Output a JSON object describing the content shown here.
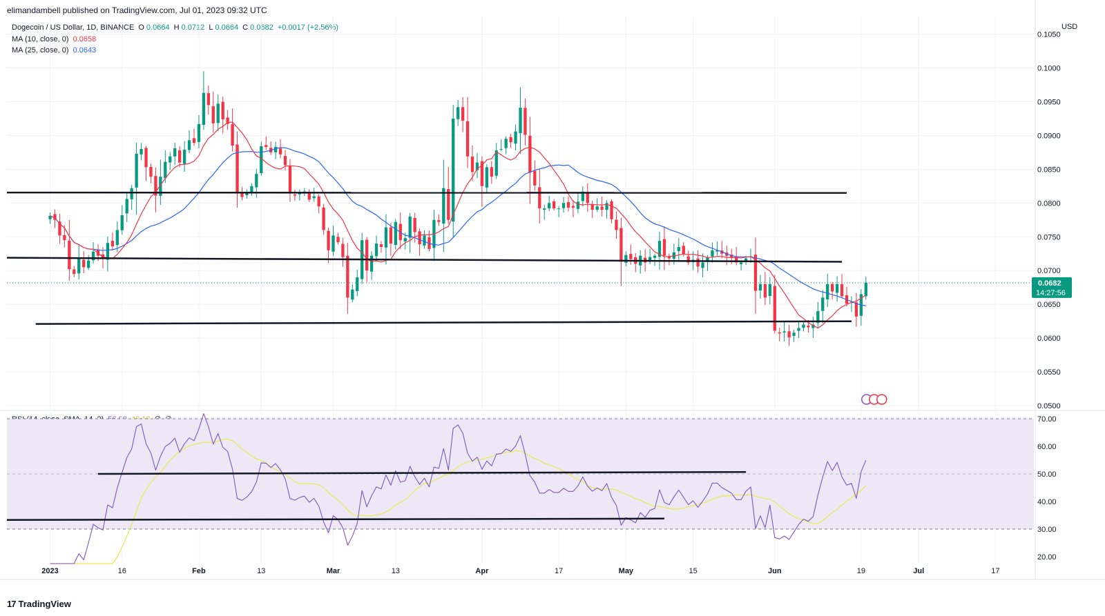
{
  "header": {
    "published": "elimandambell published on TradingView.com, Jul 01, 2023 09:32 UTC"
  },
  "legend": {
    "symbol": "Dogecoin / US Dollar, 1D, BINANCE",
    "open_label": "O",
    "open": "0.0664",
    "high_label": "H",
    "high": "0.0712",
    "low_label": "L",
    "low": "0.0664",
    "close_label": "C",
    "close": "0.0682",
    "change": "+0.0017 (+2.56%)",
    "ma10_label": "MA (10, close, 0)",
    "ma10_value": "0.0658",
    "ma25_label": "MA (25, close, 0)",
    "ma25_value": "0.0643",
    "rsi_label": "RSI (14, close, SMA, 14, 2)",
    "rsi_value": "56.00",
    "rsi_ma_value": "46.18",
    "rsi_extra1": "∅",
    "rsi_extra2": "∅"
  },
  "price_axis": {
    "currency": "USD",
    "current_price": "0.0682",
    "countdown": "14:27:56"
  },
  "footer": {
    "brand": "TradingView",
    "logo": "17"
  },
  "colors": {
    "up": "#089981",
    "down": "#f23645",
    "ma10": "#f23645",
    "ma25": "#2962ff",
    "rsi": "#7e57c2",
    "rsi_ma": "#e8ea55",
    "band": "#ede7f6",
    "line": "#131722"
  },
  "chart_data": [
    {
      "type": "candlestick",
      "title": "Dogecoin / US Dollar, 1D, BINANCE",
      "ylabel": "USD",
      "ylim": [
        0.0495,
        0.1075
      ],
      "y_ticks": [
        "0.1050",
        "0.1000",
        "0.0950",
        "0.0900",
        "0.0850",
        "0.0800",
        "0.0750",
        "0.0700",
        "0.0650",
        "0.0600",
        "0.0550",
        "0.0500"
      ],
      "x_ticks": [
        "2023",
        "16",
        "Feb",
        "13",
        "Mar",
        "13",
        "Apr",
        "17",
        "May",
        "15",
        "Jun",
        "19",
        "Jul",
        "17"
      ],
      "x_tick_days": [
        0,
        15,
        31,
        44,
        59,
        72,
        90,
        106,
        120,
        134,
        151,
        169,
        181,
        197
      ],
      "x_range_days": [
        -9,
        205
      ],
      "closes": [
        0.0781,
        0.0775,
        0.0752,
        0.0745,
        0.0702,
        0.0695,
        0.0718,
        0.0705,
        0.0715,
        0.0728,
        0.0722,
        0.0718,
        0.0741,
        0.0736,
        0.076,
        0.0782,
        0.0806,
        0.0822,
        0.0873,
        0.088,
        0.0853,
        0.0839,
        0.0811,
        0.0839,
        0.0861,
        0.0869,
        0.0881,
        0.086,
        0.0879,
        0.0893,
        0.0889,
        0.0917,
        0.0963,
        0.0945,
        0.0918,
        0.0947,
        0.0924,
        0.0917,
        0.0885,
        0.0814,
        0.0809,
        0.0815,
        0.0825,
        0.0843,
        0.0884,
        0.0883,
        0.0875,
        0.0883,
        0.0872,
        0.0856,
        0.0815,
        0.0811,
        0.0815,
        0.0817,
        0.0805,
        0.081,
        0.0795,
        0.076,
        0.073,
        0.0752,
        0.0742,
        0.072,
        0.066,
        0.0672,
        0.069,
        0.0745,
        0.07,
        0.0722,
        0.074,
        0.0735,
        0.0764,
        0.074,
        0.0772,
        0.0745,
        0.0748,
        0.078,
        0.0757,
        0.0739,
        0.0752,
        0.0732,
        0.0775,
        0.0772,
        0.0822,
        0.0775,
        0.0925,
        0.0942,
        0.0922,
        0.0869,
        0.0846,
        0.086,
        0.0825,
        0.0853,
        0.0839,
        0.0878,
        0.088,
        0.0895,
        0.089,
        0.0906,
        0.0941,
        0.0901,
        0.0845,
        0.0826,
        0.0792,
        0.0792,
        0.08,
        0.0792,
        0.0792,
        0.08,
        0.0793,
        0.0793,
        0.0802,
        0.0817,
        0.08,
        0.079,
        0.0795,
        0.079,
        0.08,
        0.0776,
        0.076,
        0.0713,
        0.0723,
        0.0717,
        0.071,
        0.0722,
        0.0712,
        0.072,
        0.0722,
        0.0744,
        0.0722,
        0.0718,
        0.0727,
        0.0735,
        0.0724,
        0.0712,
        0.0716,
        0.0706,
        0.0712,
        0.0719,
        0.073,
        0.073,
        0.0725,
        0.0722,
        0.0719,
        0.0712,
        0.0712,
        0.0718,
        0.0721,
        0.067,
        0.068,
        0.066,
        0.068,
        0.0611,
        0.0607,
        0.061,
        0.0601,
        0.0608,
        0.0615,
        0.062,
        0.0616,
        0.062,
        0.064,
        0.066,
        0.068,
        0.0669,
        0.068,
        0.0662,
        0.0651,
        0.0653,
        0.0632,
        0.0665,
        0.0682
      ],
      "ma10_last": 0.0658,
      "ma25_last": 0.0643,
      "last_price": 0.0682,
      "hlines": [
        {
          "x": [
            -9,
            166
          ],
          "y": [
            0.08155,
            0.0815
          ]
        },
        {
          "x": [
            -9,
            165
          ],
          "y": [
            0.0719,
            0.0713
          ]
        },
        {
          "x": [
            -3,
            167
          ],
          "y": [
            0.0621,
            0.0625
          ]
        }
      ]
    },
    {
      "type": "line",
      "title": "RSI (14, close, SMA, 14, 2)",
      "ylim": [
        17.5,
        72.5
      ],
      "y_ticks": [
        "70.00",
        "60.00",
        "50.00",
        "40.00",
        "30.00",
        "20.00"
      ],
      "band": [
        30,
        70
      ],
      "series": [
        {
          "name": "RSI",
          "last": 56.0
        },
        {
          "name": "RSI-based MA",
          "last": 46.18
        }
      ],
      "hlines": [
        {
          "x": [
            10,
            145
          ],
          "y": [
            50.0,
            50.7
          ]
        },
        {
          "x": [
            -9,
            128
          ],
          "y": [
            33.3,
            33.8
          ]
        }
      ]
    }
  ]
}
